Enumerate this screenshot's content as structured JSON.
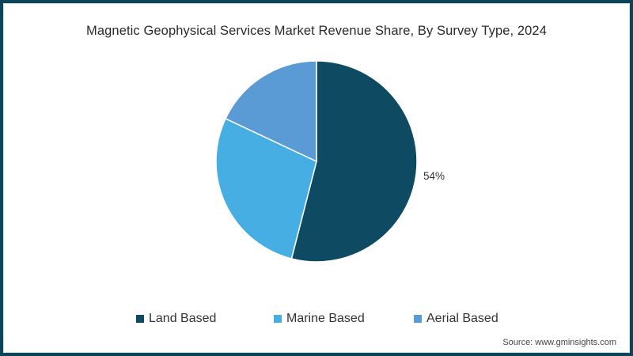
{
  "chart_data": {
    "type": "pie",
    "title": "Magnetic Geophysical Services Market Revenue Share, By Survey Type, 2024",
    "categories": [
      "Land Based",
      "Marine Based",
      "Aerial Based"
    ],
    "values": [
      54,
      28,
      18
    ],
    "labels_shown": [
      "54%",
      "",
      ""
    ],
    "colors": [
      "#0e4a61",
      "#46aee3",
      "#5b9bd5"
    ],
    "start_angle": "12 o'clock",
    "direction": "clockwise",
    "legend_position": "bottom",
    "source": "Source: www.gminsights.com"
  },
  "title": "Magnetic Geophysical Services Market Revenue Share, By Survey Type, 2024",
  "data_labels": {
    "land": "54%"
  },
  "legend": [
    {
      "label": "Land Based",
      "color": "#0e4a61"
    },
    {
      "label": "Marine Based",
      "color": "#46aee3"
    },
    {
      "label": "Aerial Based",
      "color": "#5b9bd5"
    }
  ],
  "source": "Source: www.gminsights.com",
  "frame_color": "#0e4458"
}
